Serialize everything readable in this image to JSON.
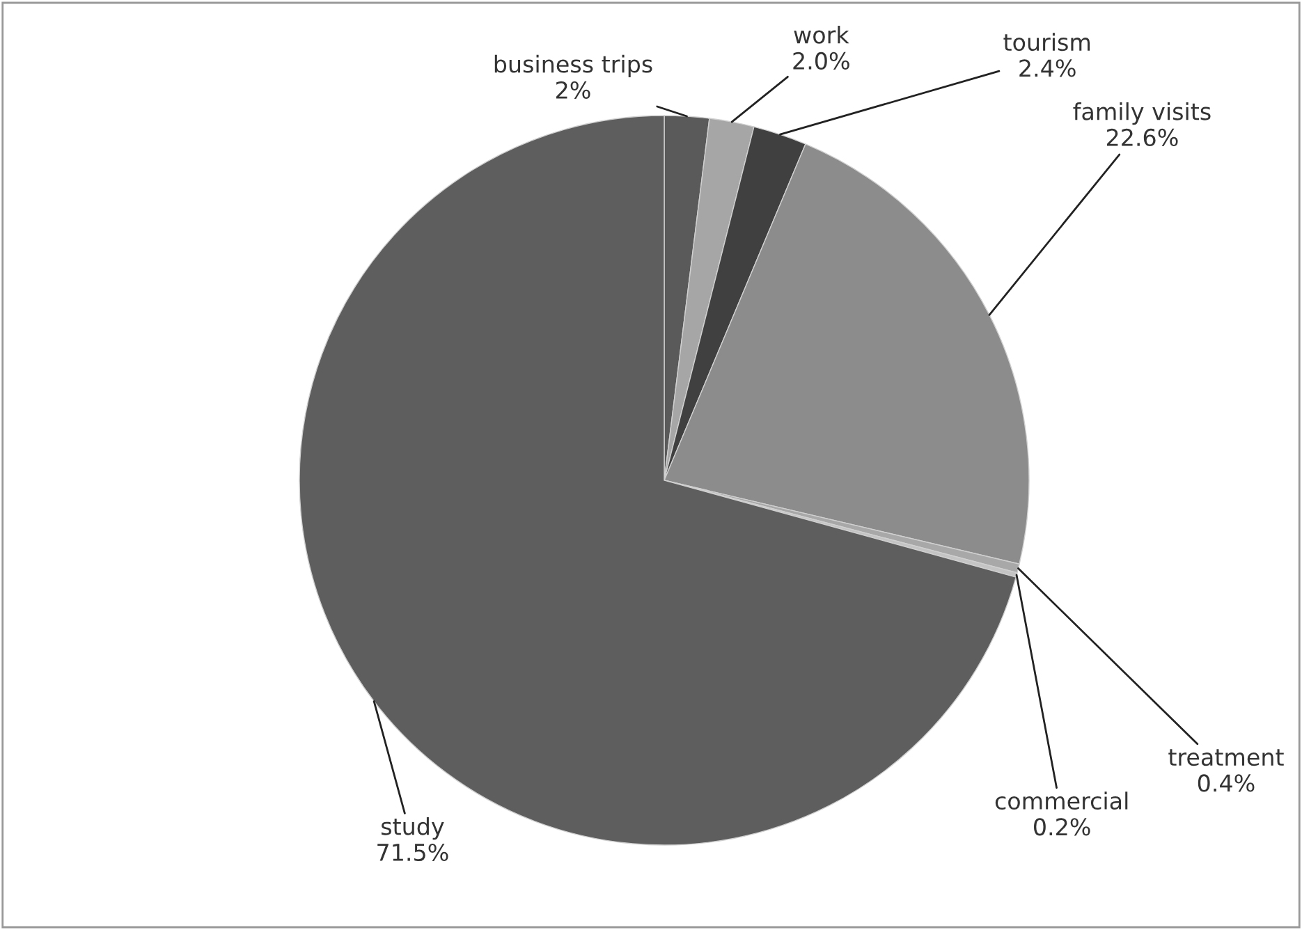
{
  "chart_data": {
    "type": "pie",
    "categories": [
      "business trips",
      "work",
      "tourism",
      "family visits",
      "treatment",
      "commercial",
      "study"
    ],
    "values": [
      2,
      2.0,
      2.4,
      22.6,
      0.4,
      0.2,
      71.5
    ],
    "value_labels": [
      "2%",
      "2.0%",
      "2.4%",
      "22.6%",
      "0.4%",
      "0.2%",
      "71.5%"
    ],
    "colors": [
      "#5a5a5a",
      "#a6a6a6",
      "#404040",
      "#8c8c8c",
      "#a8a8a8",
      "#c4c4c4",
      "#5e5e5e"
    ],
    "legend": false
  }
}
